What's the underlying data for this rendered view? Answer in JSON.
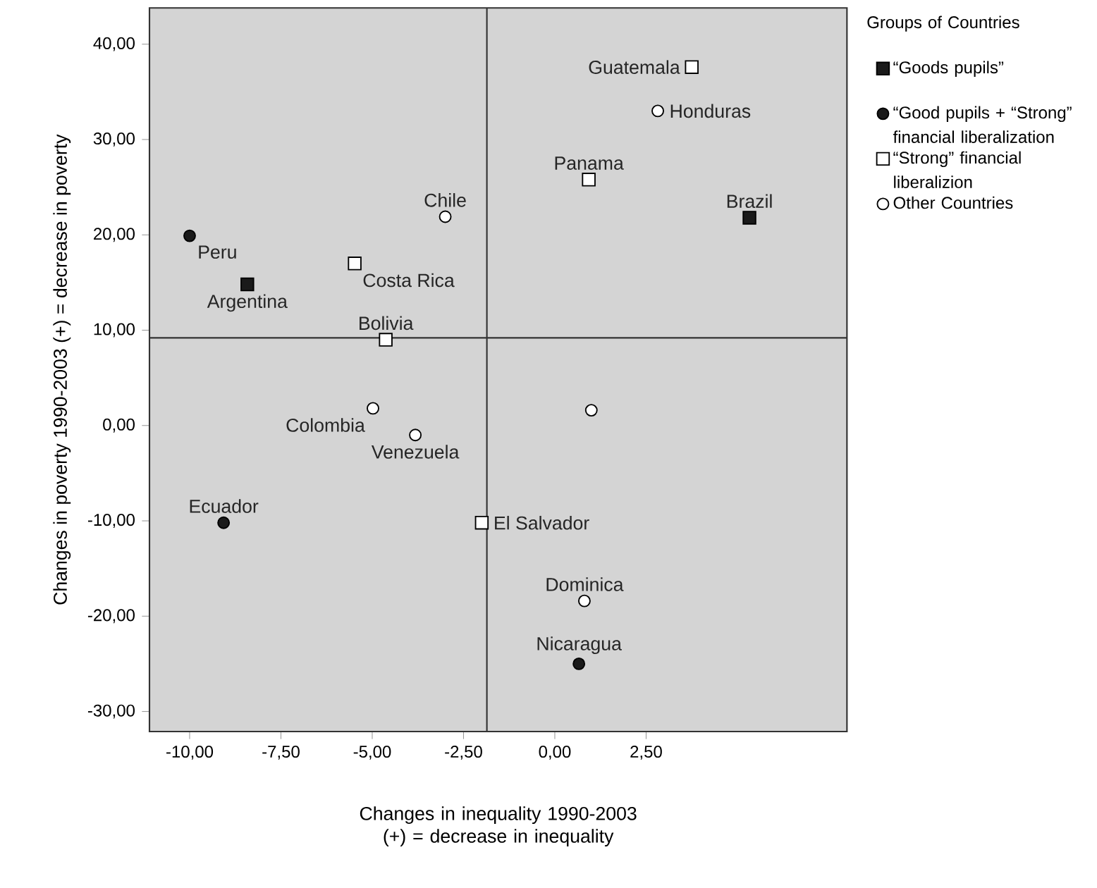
{
  "chart_data": {
    "type": "scatter",
    "xlabel": "Changes in inequality 1990-2003 (+) = decrease in inequality",
    "ylabel": "Changes in poverty 1990-2003 (+) = decrease in poverty",
    "legend_title": "Groups of Countries",
    "legend": "right",
    "xlim": [
      -11.1,
      8.0
    ],
    "ylim": [
      -32.1,
      43.8
    ],
    "xticks": [
      {
        "value": -10,
        "label": "-10,00"
      },
      {
        "value": -7.5,
        "label": "-7,50"
      },
      {
        "value": -5,
        "label": "-5,00"
      },
      {
        "value": -2.5,
        "label": "-2,50"
      },
      {
        "value": 0,
        "label": "0,00"
      },
      {
        "value": 2.5,
        "label": "2,50"
      }
    ],
    "yticks": [
      {
        "value": -30,
        "label": "-30,00"
      },
      {
        "value": -20,
        "label": "-20,00"
      },
      {
        "value": -10,
        "label": "-10,00"
      },
      {
        "value": 0,
        "label": "0,00"
      },
      {
        "value": 10,
        "label": "10,00"
      },
      {
        "value": 20,
        "label": "20,00"
      },
      {
        "value": 30,
        "label": "30,00"
      },
      {
        "value": 40,
        "label": "40,00"
      }
    ],
    "grid": false,
    "ref_lines": [
      {
        "axis": "x",
        "value": -1.86,
        "color": "#333333"
      },
      {
        "axis": "y",
        "value": 9.2,
        "color": "#333333"
      }
    ],
    "series": [
      {
        "name": "“Goods pupils”",
        "color": "#1a1a1a",
        "marker": "square",
        "x": [
          -8.42,
          5.33
        ],
        "values": [
          14.8,
          21.8
        ]
      },
      {
        "name": "“Good pupils + “Strong” financial liberalization",
        "color": "#1a1a1a",
        "marker": "circle",
        "x": [
          -10.0,
          -9.07,
          0.66
        ],
        "values": [
          19.9,
          -10.2,
          -25.0
        ]
      },
      {
        "name": "“Strong” financial liberalizion",
        "color": "#ffffff",
        "marker": "square",
        "x": [
          -5.48,
          -4.63,
          3.75,
          0.93,
          -2.0
        ],
        "values": [
          17.0,
          9.0,
          37.6,
          25.8,
          -10.2
        ]
      },
      {
        "name": "Other Countries",
        "color": "#ffffff",
        "marker": "circle",
        "x": [
          -3.0,
          -4.98,
          -3.82,
          1.0,
          0.81,
          2.82
        ],
        "values": [
          21.9,
          1.8,
          -1.0,
          1.6,
          -18.4,
          33.0
        ]
      }
    ],
    "annotations": [
      {
        "text": "Guatemala",
        "x": 3.75,
        "y": 37.6
      },
      {
        "text": "Honduras",
        "x": 2.82,
        "y": 33.0
      },
      {
        "text": "Chile",
        "x": -3.0,
        "y": 21.9
      },
      {
        "text": "Panama",
        "x": 0.93,
        "y": 25.8
      },
      {
        "text": "Brazil",
        "x": 5.33,
        "y": 21.8
      },
      {
        "text": "Peru",
        "x": -10.0,
        "y": 19.9
      },
      {
        "text": "Argentina",
        "x": -8.42,
        "y": 14.8
      },
      {
        "text": "Costa Rica",
        "x": -5.48,
        "y": 17.0
      },
      {
        "text": "Bolivia",
        "x": -4.63,
        "y": 9.0
      },
      {
        "text": "Colombia",
        "x": -4.98,
        "y": 1.8
      },
      {
        "text": "Venezuela",
        "x": -3.82,
        "y": -1.0
      },
      {
        "text": "Ecuador",
        "x": -9.07,
        "y": -10.2
      },
      {
        "text": "El Salvador",
        "x": -2.0,
        "y": -10.2
      },
      {
        "text": "Dominica",
        "x": 0.81,
        "y": -18.4
      },
      {
        "text": "Nicaragua",
        "x": 0.66,
        "y": -25.0
      }
    ]
  }
}
